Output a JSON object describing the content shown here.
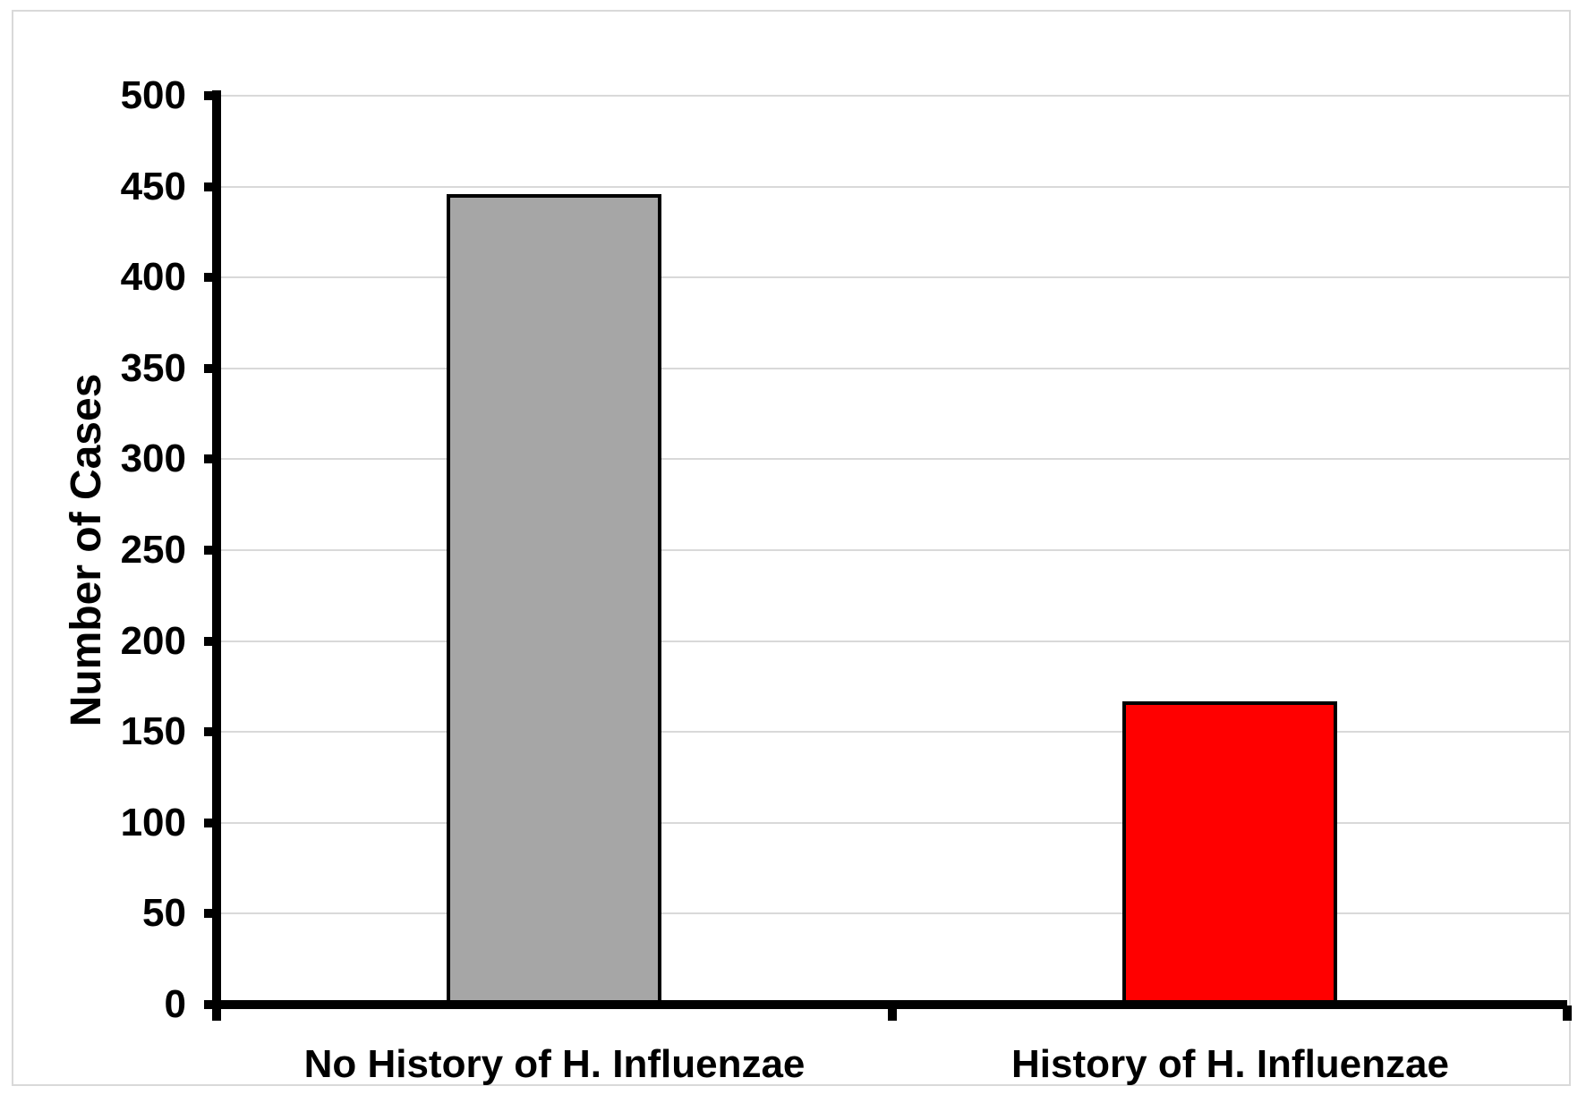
{
  "chart_data": {
    "type": "bar",
    "title": "",
    "xlabel": "",
    "ylabel": "Number of Cases",
    "categories": [
      "No History of H. Influenzae",
      "History of H. Influenzae"
    ],
    "values": [
      446,
      167
    ],
    "ylim": [
      0,
      500
    ],
    "ytick_step": 50,
    "yticks": [
      0,
      50,
      100,
      150,
      200,
      250,
      300,
      350,
      400,
      450,
      500
    ],
    "grid": "horizontal-major",
    "legend_position": "none",
    "data_labels": "none",
    "bar_colors": [
      "#A6A6A6",
      "#FF0000"
    ],
    "bar_border_color": "#000000",
    "axis_color": "#000000",
    "gridline_color": "#D9D9D9",
    "frame_border_color": "#D9D9D9",
    "background_color": "#FFFFFF"
  }
}
